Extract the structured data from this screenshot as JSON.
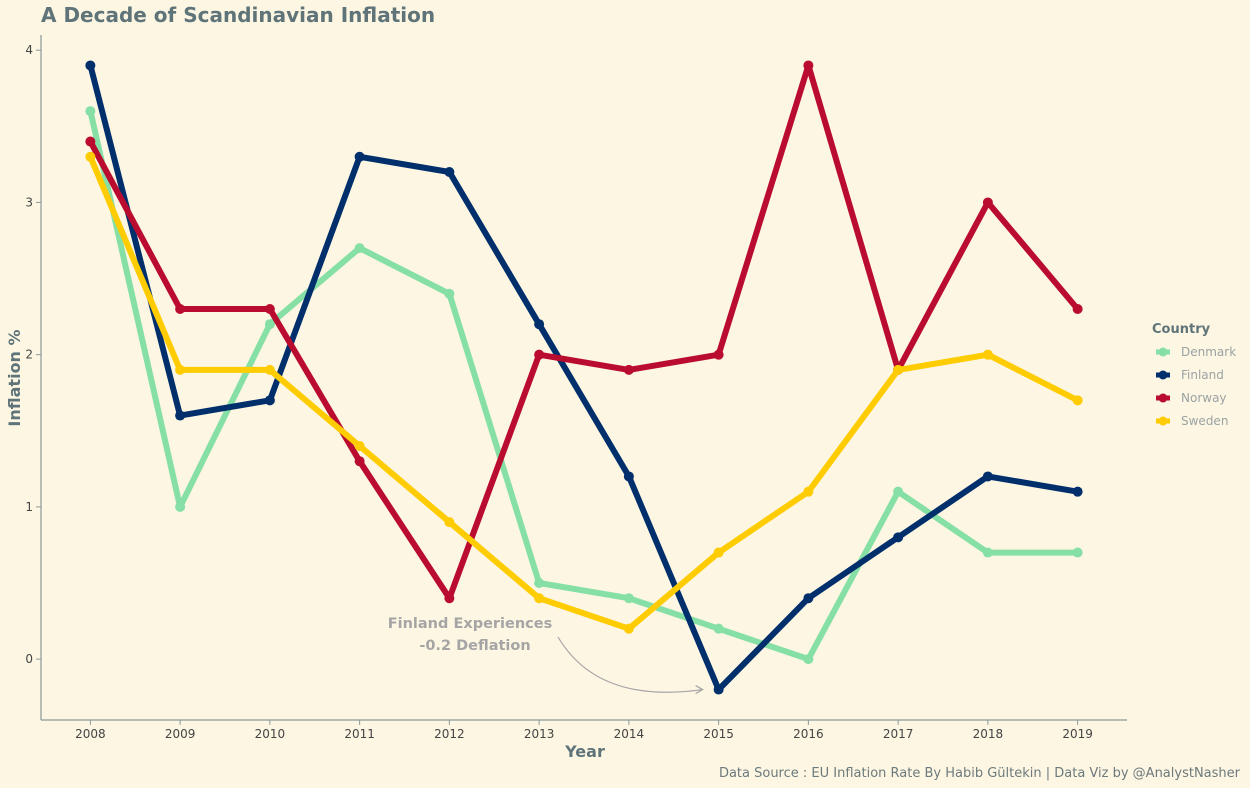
{
  "chart_data": {
    "type": "line",
    "title": "A Decade of Scandinavian Inflation",
    "xlabel": "Year",
    "ylabel": "Inflation %",
    "x": [
      2008,
      2009,
      2010,
      2011,
      2012,
      2013,
      2014,
      2015,
      2016,
      2017,
      2018,
      2019
    ],
    "xlim": [
      2007.45,
      2019.55
    ],
    "ylim": [
      -0.4,
      4.1
    ],
    "y_ticks": [
      0,
      1,
      2,
      3,
      4
    ],
    "grid": false,
    "legend": {
      "title": "Country",
      "placement": "right"
    },
    "series": [
      {
        "name": "Denmark",
        "color": "#86dfa5",
        "values": [
          3.6,
          1.0,
          2.2,
          2.7,
          2.4,
          0.5,
          0.4,
          0.2,
          0.0,
          1.1,
          0.7,
          0.7
        ]
      },
      {
        "name": "Finland",
        "color": "#002f6c",
        "values": [
          3.9,
          1.6,
          1.7,
          3.3,
          3.2,
          2.2,
          1.2,
          -0.2,
          0.4,
          0.8,
          1.2,
          1.1
        ]
      },
      {
        "name": "Norway",
        "color": "#ba0c2f",
        "values": [
          3.4,
          2.3,
          2.3,
          1.3,
          0.4,
          2.0,
          1.9,
          2.0,
          3.9,
          1.9,
          3.0,
          2.3
        ]
      },
      {
        "name": "Sweden",
        "color": "#fecc00",
        "values": [
          3.3,
          1.9,
          1.9,
          1.4,
          0.9,
          0.4,
          0.2,
          0.7,
          1.1,
          1.9,
          2.0,
          1.7
        ]
      }
    ],
    "annotation": {
      "line1": "Finland Experiences",
      "line2": "-0.2 Deflation",
      "target_x": 2015,
      "target_y": -0.2
    },
    "caption": "Data Source : EU Inflation Rate By Habib Gültekin | Data Viz by @AnalystNasher"
  }
}
